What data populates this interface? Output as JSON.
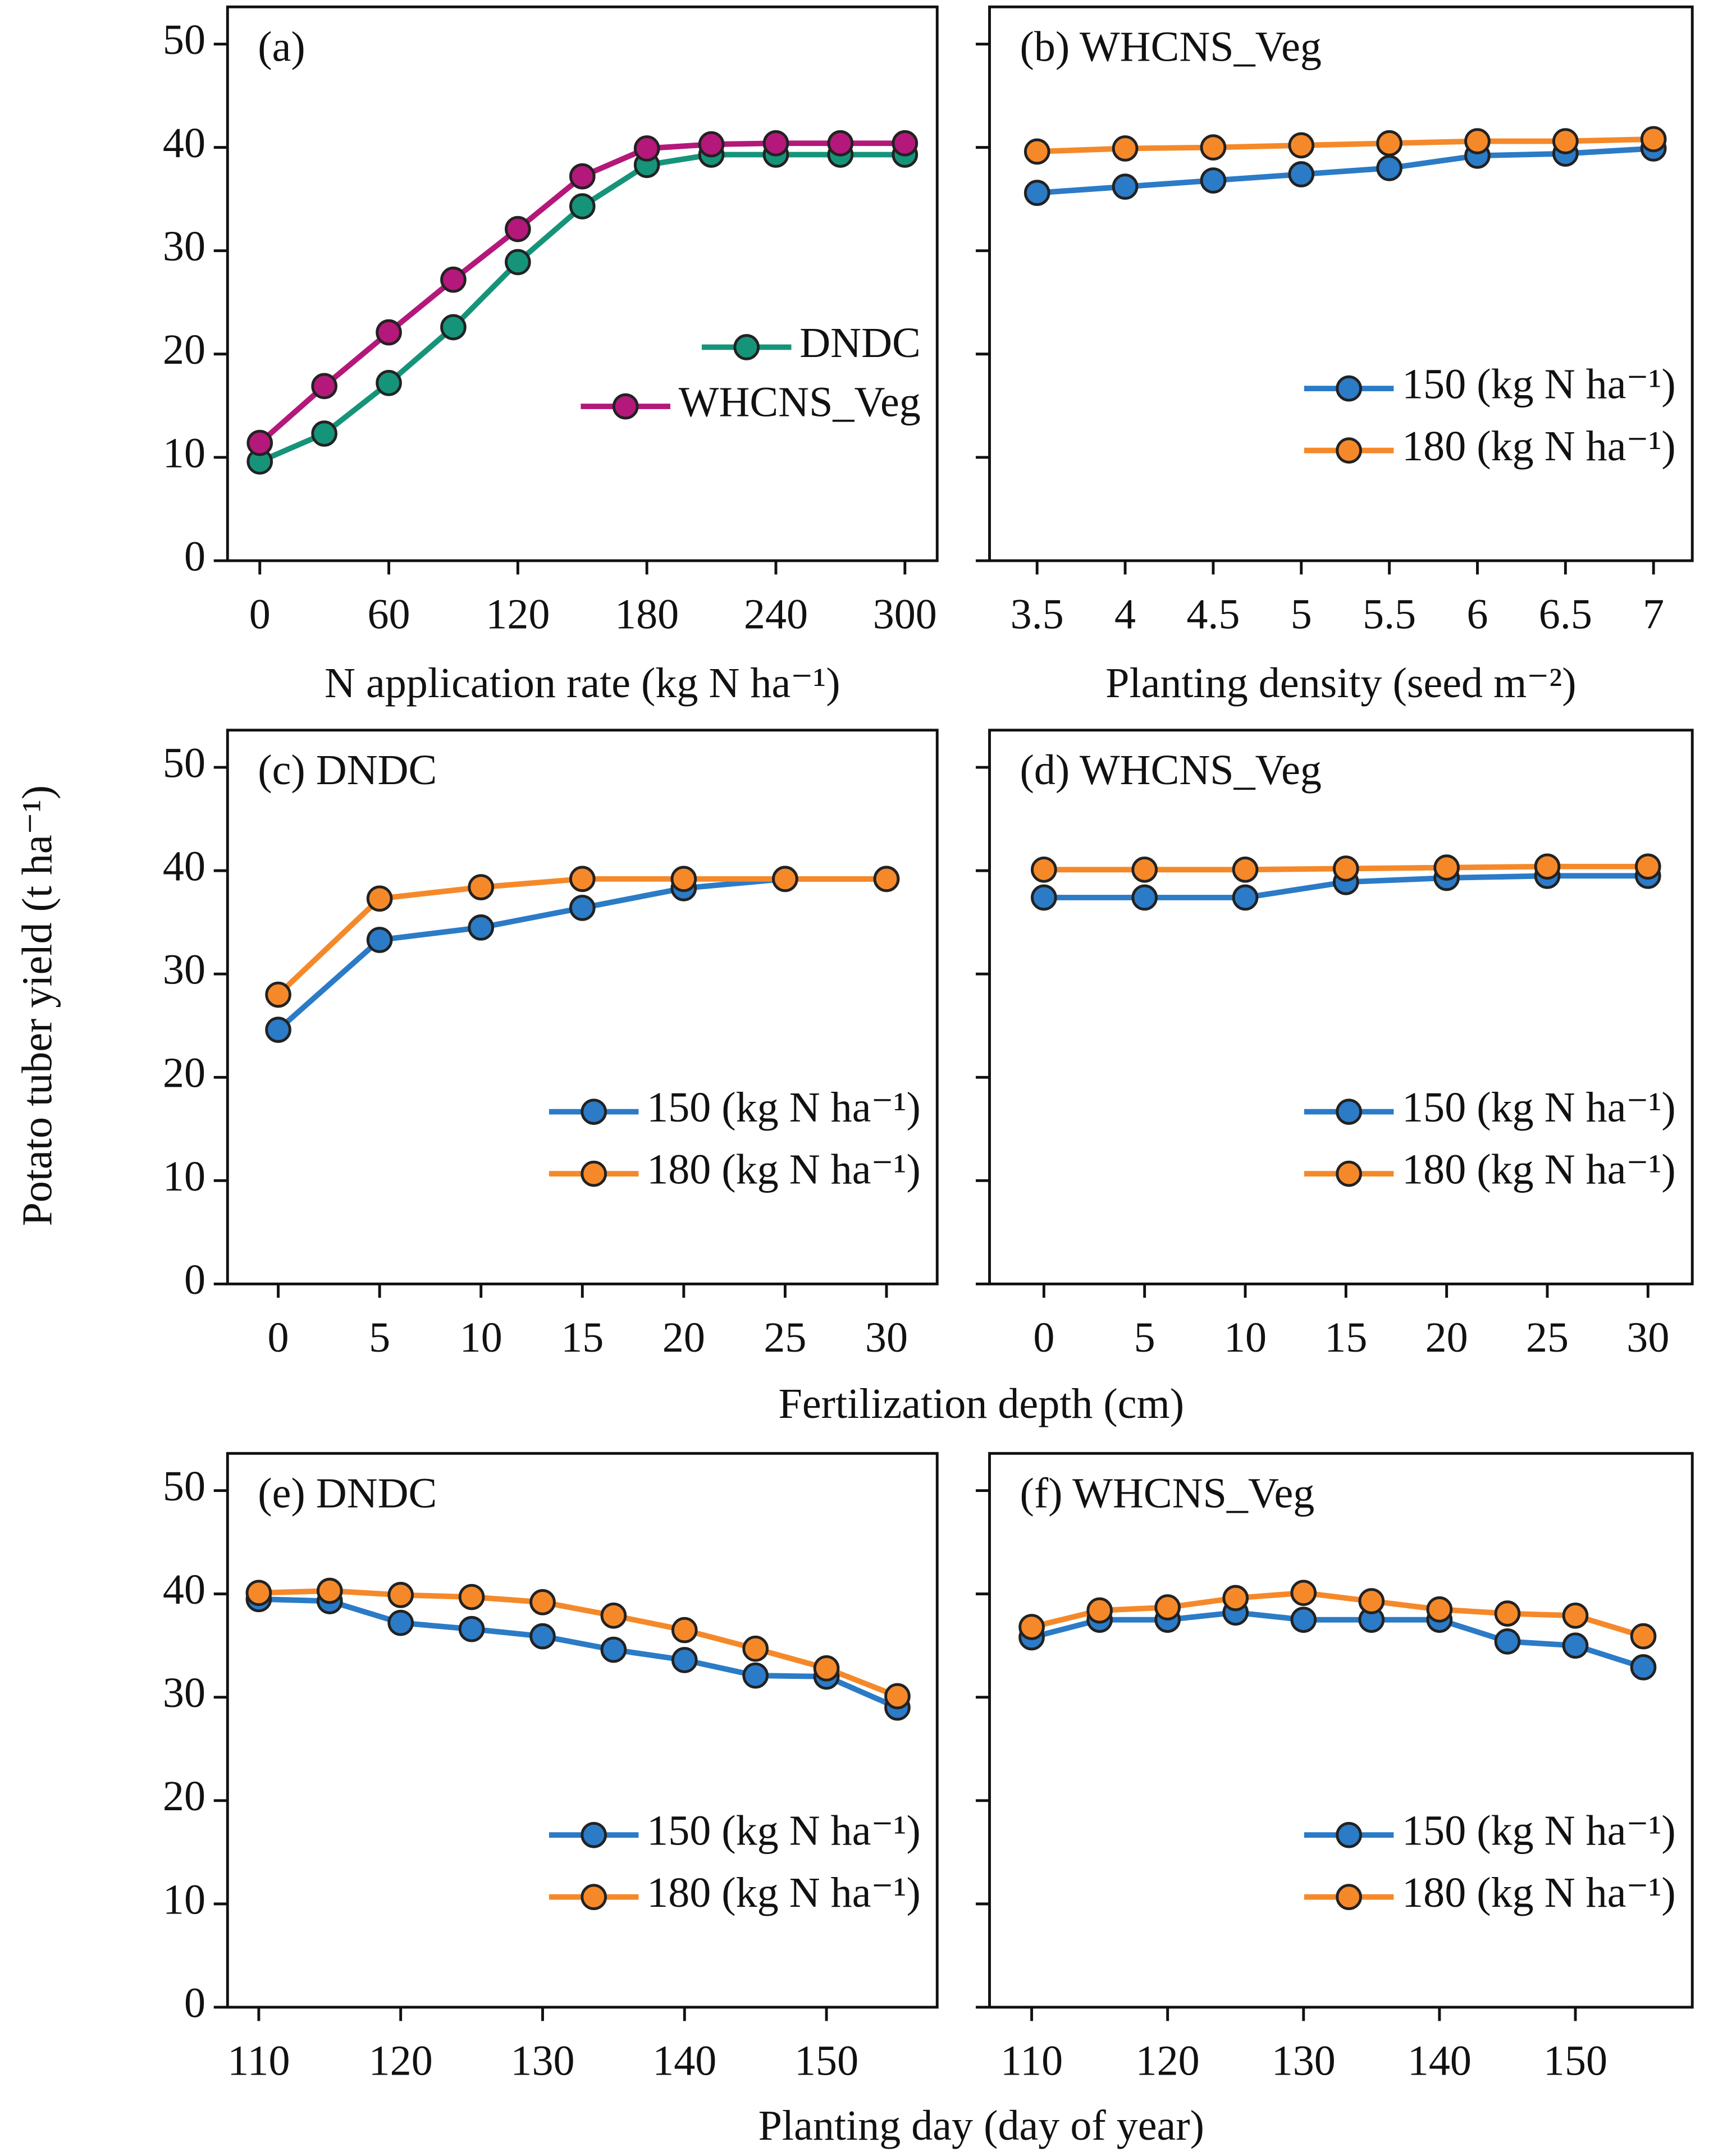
{
  "chart_data": [
    {
      "type": "line",
      "title": "(a)",
      "xlabel": "N application rate (kg N ha⁻¹)",
      "x": [
        0,
        30,
        60,
        90,
        120,
        150,
        180,
        210,
        240,
        270,
        300
      ],
      "xlim": [
        -15,
        315
      ],
      "xticks": [
        0,
        60,
        120,
        180,
        240,
        300
      ],
      "ylim": [
        0,
        53.6
      ],
      "yticks": [
        0,
        10,
        20,
        30,
        40,
        50
      ],
      "legend": "center right",
      "series": [
        {
          "name": "DNDC",
          "color": "#16947a",
          "values": [
            9.6,
            12.3,
            17.2,
            22.6,
            28.9,
            34.3,
            38.3,
            39.3,
            39.3,
            39.3,
            39.3
          ]
        },
        {
          "name": "WHCNS_Veg",
          "color": "#b3187a",
          "values": [
            11.4,
            16.9,
            22.1,
            27.2,
            32.1,
            37.2,
            39.9,
            40.3,
            40.4,
            40.4,
            40.4
          ]
        }
      ]
    },
    {
      "type": "line",
      "title": "(b) WHCNS_Veg",
      "xlabel": "Planting density (seed m⁻²)",
      "x": [
        3.5,
        4,
        4.5,
        5,
        5.5,
        6,
        6.5,
        7
      ],
      "xlim": [
        3.23,
        7.22
      ],
      "xticks": [
        3.5,
        4,
        4.5,
        5,
        5.5,
        6,
        6.5,
        7
      ],
      "ylim": [
        0,
        53.6
      ],
      "yticks": [
        0,
        10,
        20,
        30,
        40,
        50
      ],
      "legend": "lower right",
      "series": [
        {
          "name": "150 (kg N ha⁻¹)",
          "color": "#2b7bc7",
          "values": [
            35.6,
            36.2,
            36.8,
            37.4,
            38.0,
            39.2,
            39.4,
            39.9
          ]
        },
        {
          "name": "180 (kg N ha⁻¹)",
          "color": "#f5892a",
          "values": [
            39.6,
            39.9,
            40.0,
            40.2,
            40.4,
            40.6,
            40.6,
            40.8
          ]
        }
      ]
    },
    {
      "type": "line",
      "title": "(c) DNDC",
      "x": [
        0,
        5,
        10,
        15,
        20,
        25,
        30
      ],
      "xlim": [
        -2.5,
        32.5
      ],
      "xticks": [
        0,
        5,
        10,
        15,
        20,
        25,
        30
      ],
      "ylim": [
        0,
        53.6
      ],
      "yticks": [
        0,
        10,
        20,
        30,
        40,
        50
      ],
      "legend": "lower right",
      "series": [
        {
          "name": "150 (kg N ha⁻¹)",
          "color": "#2b7bc7",
          "values": [
            24.6,
            33.3,
            34.5,
            36.4,
            38.3,
            39.2,
            39.2
          ]
        },
        {
          "name": "180 (kg N ha⁻¹)",
          "color": "#f5892a",
          "values": [
            28.0,
            37.3,
            38.4,
            39.2,
            39.2,
            39.2,
            39.2
          ]
        }
      ]
    },
    {
      "type": "line",
      "title": "(d) WHCNS_Veg",
      "x": [
        0,
        5,
        10,
        15,
        20,
        25,
        30
      ],
      "xlim": [
        -2.7,
        32.2
      ],
      "xticks": [
        0,
        5,
        10,
        15,
        20,
        25,
        30
      ],
      "ylim": [
        0,
        53.6
      ],
      "yticks": [
        0,
        10,
        20,
        30,
        40,
        50
      ],
      "legend": "lower right",
      "series": [
        {
          "name": "150 (kg N ha⁻¹)",
          "color": "#2b7bc7",
          "values": [
            37.4,
            37.4,
            37.4,
            38.9,
            39.3,
            39.5,
            39.5
          ]
        },
        {
          "name": "180 (kg N ha⁻¹)",
          "color": "#f5892a",
          "values": [
            40.1,
            40.1,
            40.1,
            40.2,
            40.3,
            40.4,
            40.4
          ]
        }
      ]
    },
    {
      "type": "line",
      "title": "(e) DNDC",
      "x": [
        110,
        115,
        120,
        125,
        130,
        135,
        140,
        145,
        150,
        155
      ],
      "xlim": [
        107.8,
        157.8
      ],
      "xticks": [
        110,
        120,
        130,
        140,
        150
      ],
      "ylim": [
        0,
        53.6
      ],
      "yticks": [
        0,
        10,
        20,
        30,
        40,
        50
      ],
      "legend": "lower right",
      "series": [
        {
          "name": "150 (kg N ha⁻¹)",
          "color": "#2b7bc7",
          "values": [
            39.5,
            39.3,
            37.2,
            36.6,
            35.9,
            34.6,
            33.6,
            32.1,
            32.0,
            29.0
          ]
        },
        {
          "name": "180 (kg N ha⁻¹)",
          "color": "#f5892a",
          "values": [
            40.1,
            40.3,
            39.9,
            39.7,
            39.2,
            37.9,
            36.5,
            34.7,
            32.8,
            30.1
          ]
        }
      ]
    },
    {
      "type": "line",
      "title": "(f) WHCNS_Veg",
      "x": [
        110,
        115,
        120,
        125,
        130,
        135,
        140,
        145,
        150,
        155
      ],
      "xlim": [
        106.9,
        158.6
      ],
      "xticks": [
        110,
        120,
        130,
        140,
        150
      ],
      "ylim": [
        0,
        53.6
      ],
      "yticks": [
        0,
        10,
        20,
        30,
        40,
        50
      ],
      "legend": "lower right",
      "series": [
        {
          "name": "150 (kg N ha⁻¹)",
          "color": "#2b7bc7",
          "values": [
            35.8,
            37.5,
            37.5,
            38.2,
            37.5,
            37.5,
            37.5,
            35.4,
            35.0,
            32.9
          ]
        },
        {
          "name": "180 (kg N ha⁻¹)",
          "color": "#f5892a",
          "values": [
            36.8,
            38.4,
            38.7,
            39.6,
            40.1,
            39.3,
            38.5,
            38.1,
            37.9,
            35.9
          ]
        }
      ]
    }
  ],
  "ylabel": "Potato tuber yield (t ha⁻¹)",
  "xlabel_cd": "Fertilization depth (cm)",
  "xlabel_ef": "Planting day (day of year)"
}
